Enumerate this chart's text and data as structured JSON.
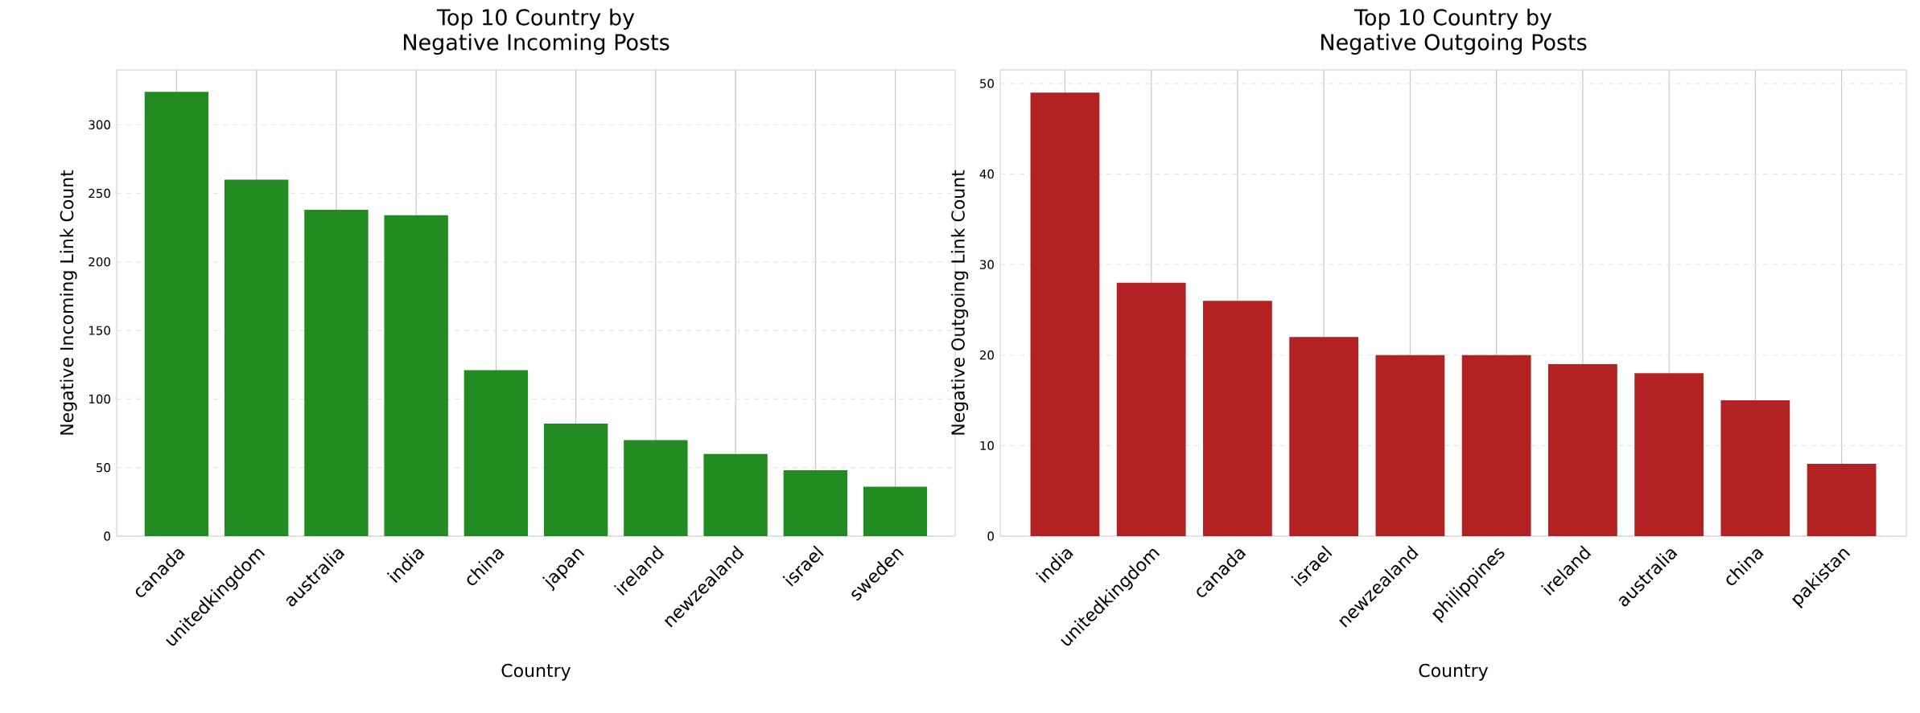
{
  "chart_data": [
    {
      "type": "bar",
      "title": "Top 10 Country by\nNegative Incoming Posts",
      "xlabel": "Country",
      "ylabel": "Negative Incoming Link Count",
      "categories": [
        "canada",
        "unitedkingdom",
        "australia",
        "india",
        "china",
        "japan",
        "ireland",
        "newzealand",
        "israel",
        "sweden"
      ],
      "values": [
        324,
        260,
        238,
        234,
        121,
        82,
        70,
        60,
        48,
        36
      ],
      "color": "#228b22",
      "ylim": [
        0,
        340
      ],
      "yticks": [
        0,
        50,
        100,
        150,
        200,
        250,
        300
      ],
      "grid": true
    },
    {
      "type": "bar",
      "title": "Top 10 Country by\nNegative Outgoing Posts",
      "xlabel": "Country",
      "ylabel": "Negative Outgoing Link Count",
      "categories": [
        "india",
        "unitedkingdom",
        "canada",
        "israel",
        "newzealand",
        "philippines",
        "ireland",
        "australia",
        "china",
        "pakistan"
      ],
      "values": [
        49,
        28,
        26,
        22,
        20,
        20,
        19,
        18,
        15,
        8
      ],
      "color": "#b22222",
      "ylim": [
        0,
        51.5
      ],
      "yticks": [
        0,
        10,
        20,
        30,
        40,
        50
      ],
      "grid": true
    }
  ]
}
